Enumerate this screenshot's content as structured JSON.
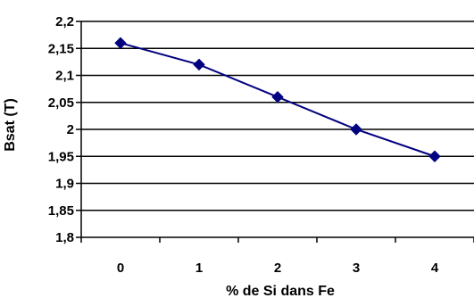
{
  "chart_data": {
    "type": "line",
    "title": "",
    "xlabel": "% de Si dans Fe",
    "ylabel": "Bsat (T)",
    "categories": [
      "0",
      "1",
      "2",
      "3",
      "4"
    ],
    "x": [
      0,
      1,
      2,
      3,
      4
    ],
    "series": [
      {
        "values": [
          2.16,
          2.12,
          2.06,
          2.0,
          1.95
        ],
        "color": "#000080"
      }
    ],
    "ylim": [
      1.8,
      2.2
    ],
    "yticks": [
      1.8,
      1.85,
      1.9,
      1.95,
      2.0,
      2.05,
      2.1,
      2.15,
      2.2
    ],
    "ytick_labels": [
      "1,8",
      "1,85",
      "1,9",
      "1,95",
      "2",
      "2,05",
      "2,1",
      "2,15",
      "2,2"
    ],
    "grid": true,
    "marker": "diamond",
    "legend": "none"
  }
}
